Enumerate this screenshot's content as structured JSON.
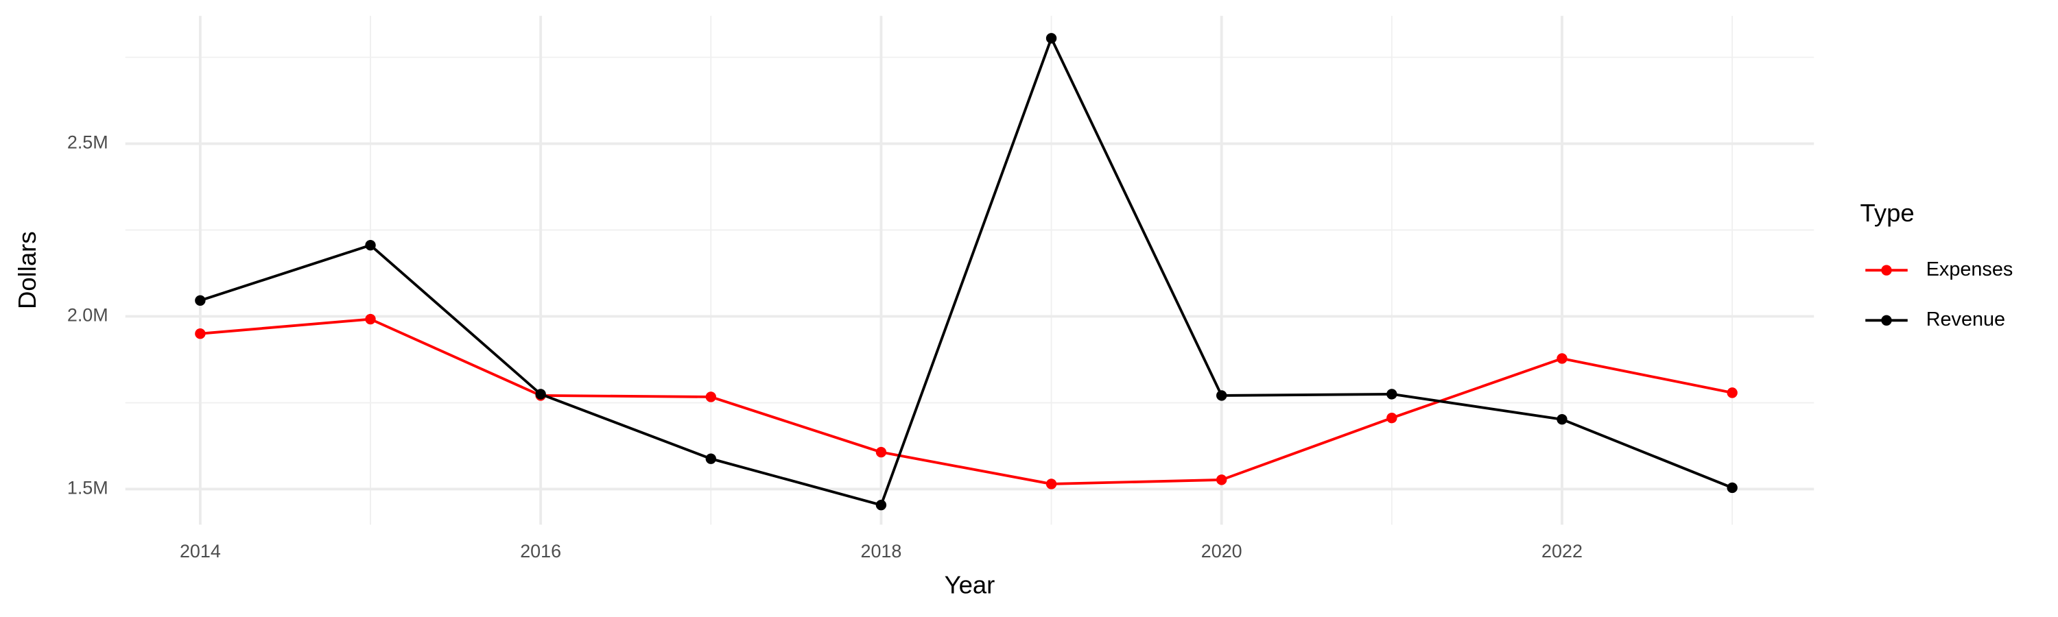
{
  "chart_data": {
    "type": "line",
    "x_label": "Year",
    "y_label": "Dollars",
    "legend_title": "Type",
    "legend_position": "right",
    "x": [
      2014,
      2015,
      2016,
      2017,
      2018,
      2019,
      2020,
      2021,
      2022,
      2023
    ],
    "series": [
      {
        "name": "Expenses",
        "color": "#ff0000",
        "values": [
          1950000,
          1992000,
          1771000,
          1767000,
          1607000,
          1515000,
          1527000,
          1706000,
          1878000,
          1779000
        ]
      },
      {
        "name": "Revenue",
        "color": "#000000",
        "values": [
          2046000,
          2206000,
          1775000,
          1588000,
          1454000,
          2805000,
          1771000,
          1775000,
          1702000,
          1504000
        ]
      }
    ],
    "xlim": [
      2013.56,
      2023.48
    ],
    "xticks": [
      2014,
      2016,
      2018,
      2020,
      2022
    ],
    "ylim": [
      1397000,
      2870000
    ],
    "yticks": [
      {
        "value": 1500000,
        "label": "1.5M"
      },
      {
        "value": 2000000,
        "label": "2.0M"
      },
      {
        "value": 2500000,
        "label": "2.5M"
      }
    ],
    "grid": true
  }
}
